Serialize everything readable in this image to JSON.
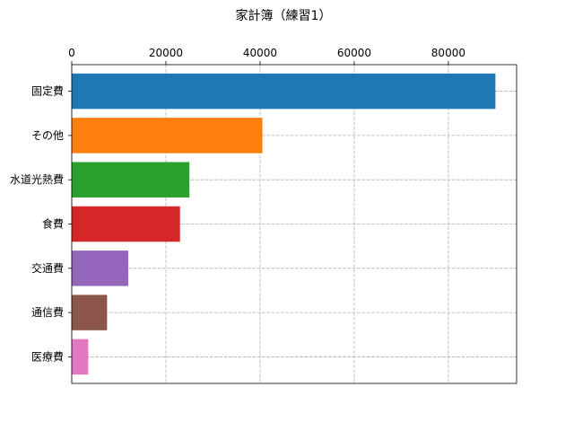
{
  "chart_data": {
    "type": "bar",
    "orientation": "horizontal",
    "title": "家計簿（練習1）",
    "xlabel": "",
    "ylabel": "",
    "categories": [
      "固定費",
      "その他",
      "水道光熱費",
      "食費",
      "交通費",
      "通信費",
      "医療費"
    ],
    "values": [
      90000,
      40500,
      25000,
      23000,
      12000,
      7500,
      3500
    ],
    "colors": [
      "#1f77b4",
      "#ff7f0e",
      "#2ca02c",
      "#d62728",
      "#9467bd",
      "#8c564b",
      "#e377c2"
    ],
    "xlim": [
      0,
      94500
    ],
    "xticks": [
      0,
      20000,
      40000,
      60000,
      80000
    ],
    "x_axis_position": "top",
    "grid": true,
    "grid_style": "dashed"
  }
}
